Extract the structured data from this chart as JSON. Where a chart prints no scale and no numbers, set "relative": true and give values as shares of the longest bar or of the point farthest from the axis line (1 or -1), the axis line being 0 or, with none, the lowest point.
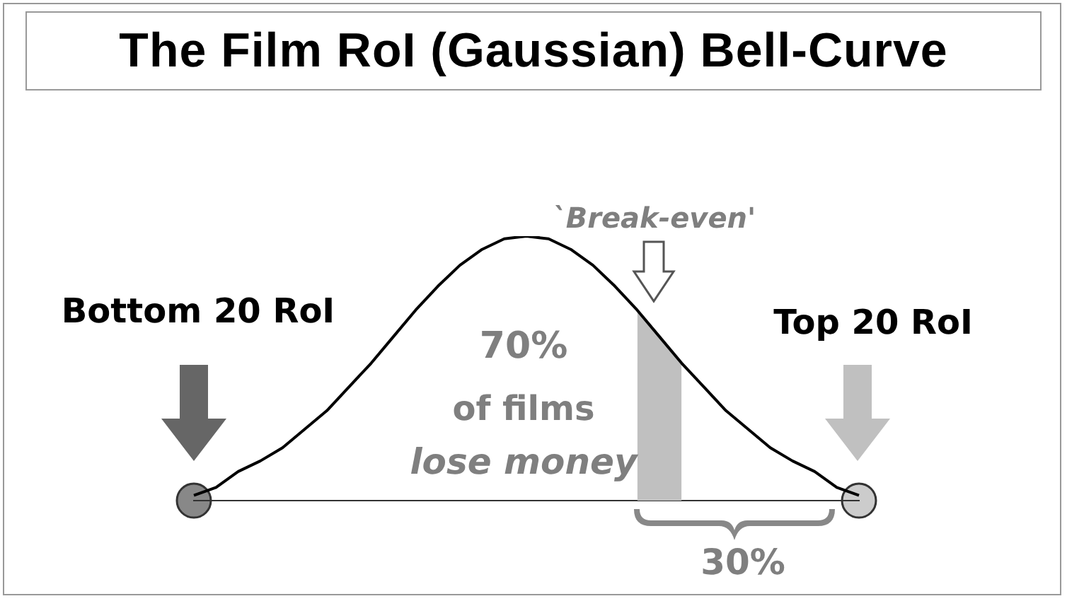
{
  "chart_data": {
    "type": "line",
    "title": "The Film RoI (Gaussian) Bell-Curve",
    "relative": true,
    "categories": [
      null,
      null,
      null,
      null,
      null,
      null,
      null,
      null,
      null,
      null,
      null,
      null,
      null,
      null,
      null,
      null,
      null,
      null,
      null,
      null,
      null,
      null,
      null,
      null,
      null,
      null,
      null,
      null,
      null,
      null,
      null
    ],
    "series": [
      {
        "type": "area",
        "color": "#c0c0c0",
        "values": [
          null,
          null,
          null,
          null,
          null,
          null,
          null,
          null,
          null,
          null,
          null,
          null,
          null,
          null,
          null,
          null,
          null,
          null,
          null,
          null,
          0.72,
          0.62,
          0.52,
          null,
          null,
          null,
          null,
          null,
          null,
          null,
          null
        ]
      },
      {
        "color": "#000000",
        "values": [
          0.02,
          0.05,
          0.11,
          0.15,
          0.2,
          0.27,
          0.34,
          0.43,
          0.52,
          0.62,
          0.72,
          0.81,
          0.89,
          0.95,
          0.99,
          1,
          0.99,
          0.95,
          0.89,
          0.81,
          0.72,
          0.62,
          0.52,
          0.43,
          0.34,
          0.27,
          0.2,
          0.15,
          0.11,
          0.05,
          0.02
        ]
      }
    ],
    "annotations": [
      "Bottom 20 RoI",
      "Top 20 RoI",
      "`Break-even'",
      "70%",
      "of films",
      "lose money",
      "30%"
    ]
  }
}
